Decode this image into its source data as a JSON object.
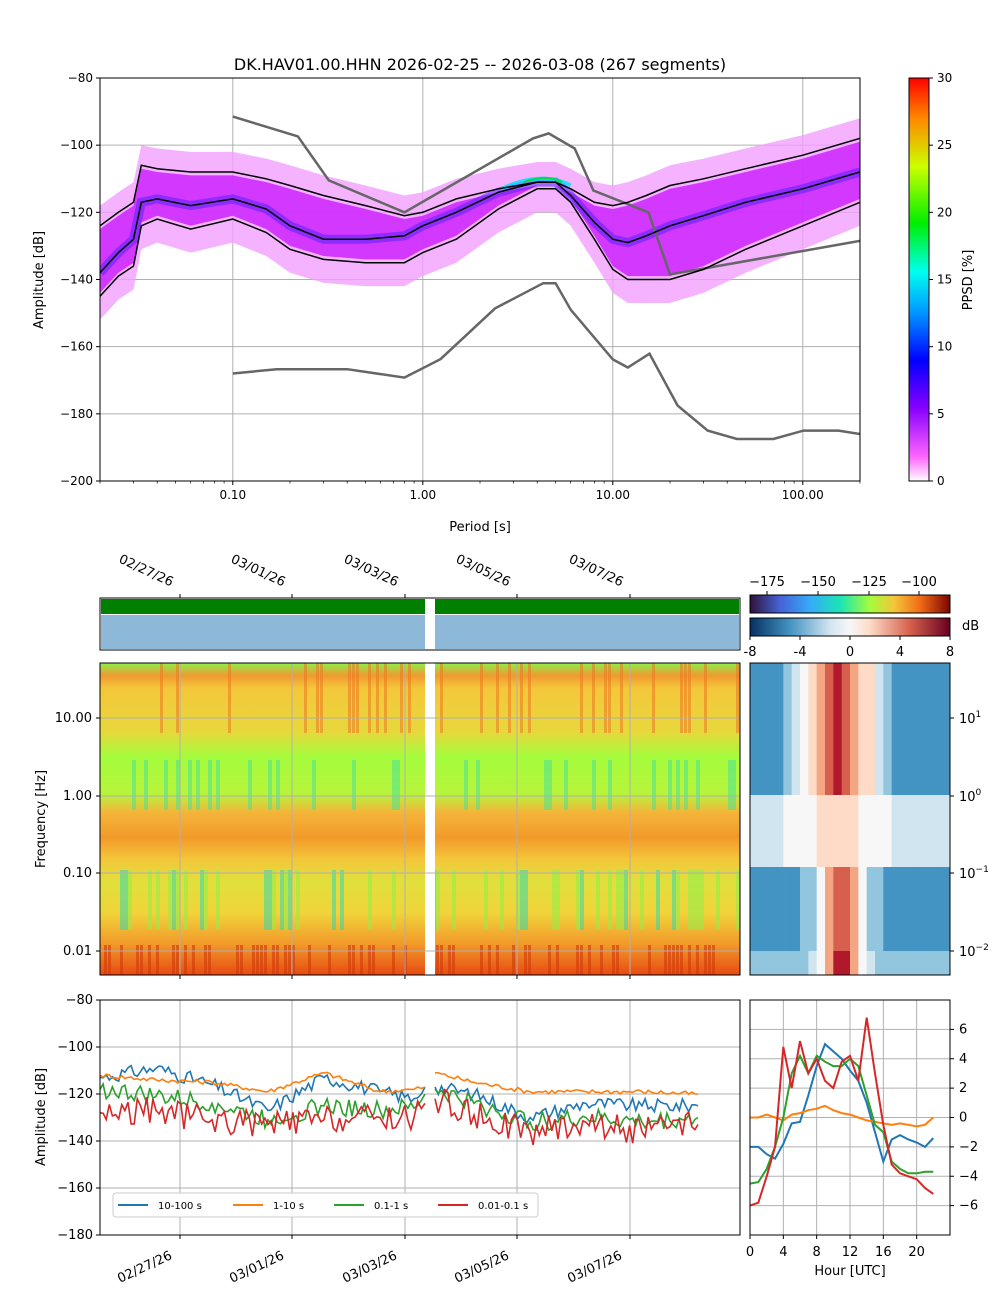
{
  "title": "DK.HAV01.00.HHN   2026-02-25 -- 2026-03-08  (267 segments)",
  "chart_data": [
    {
      "type": "heatmap",
      "name": "probabilistic power spectral density",
      "xlabel": "Period [s]",
      "ylabel": "Amplitude [dB]",
      "x_scale": "log",
      "xlim": [
        0.02,
        200
      ],
      "ylim": [
        -200,
        -80
      ],
      "xticks": [
        "0.10",
        "1.00",
        "10.00",
        "100.00"
      ],
      "yticks": [
        "−200",
        "−180",
        "−160",
        "−140",
        "−120",
        "−100",
        "−80"
      ],
      "grid": true,
      "colorbar": {
        "label": "PPSD [%]",
        "range": [
          0,
          30
        ],
        "ticks": [
          "0",
          "5",
          "10",
          "15",
          "20",
          "25",
          "30"
        ]
      },
      "percentile_curves": [
        {
          "x": [
            0.02,
            0.025,
            0.03,
            0.033,
            0.04,
            0.06,
            0.1,
            0.15,
            0.2,
            0.3,
            0.5,
            0.8,
            1.0,
            1.5,
            2.5,
            4,
            5,
            6,
            8,
            10,
            12,
            15,
            20,
            30,
            50,
            100,
            200
          ],
          "y": [
            -124,
            -120,
            -117,
            -106,
            -107,
            -108,
            -108,
            -110,
            -112,
            -115,
            -118,
            -121,
            -120,
            -116,
            -113,
            -111,
            -111,
            -113,
            -117,
            -118,
            -117,
            -115,
            -112,
            -110,
            -107,
            -103,
            -98
          ]
        },
        {
          "x": [
            0.02,
            0.025,
            0.03,
            0.033,
            0.04,
            0.06,
            0.1,
            0.15,
            0.2,
            0.3,
            0.5,
            0.8,
            1.0,
            1.5,
            2.5,
            4,
            5,
            6,
            8,
            10,
            12,
            15,
            20,
            30,
            50,
            100,
            200
          ],
          "y": [
            -138,
            -132,
            -128,
            -117,
            -116,
            -118,
            -116,
            -119,
            -124,
            -128,
            -128,
            -127,
            -124,
            -120,
            -114,
            -111,
            -111,
            -115,
            -123,
            -128,
            -129,
            -127,
            -124,
            -121,
            -117,
            -113,
            -108
          ]
        },
        {
          "x": [
            0.02,
            0.025,
            0.03,
            0.033,
            0.04,
            0.06,
            0.1,
            0.15,
            0.2,
            0.3,
            0.5,
            0.8,
            1.0,
            1.5,
            2.5,
            4,
            5,
            6,
            8,
            10,
            12,
            15,
            20,
            30,
            50,
            100,
            200
          ],
          "y": [
            -145,
            -139,
            -136,
            -124,
            -122,
            -125,
            -122,
            -126,
            -131,
            -134,
            -135,
            -135,
            -132,
            -128,
            -119,
            -113,
            -113,
            -117,
            -128,
            -137,
            -140,
            -140,
            -140,
            -137,
            -131,
            -124,
            -117
          ]
        }
      ],
      "noise_models": [
        {
          "name": "high noise model",
          "x": [
            0.1,
            0.22,
            0.32,
            0.8,
            3.8,
            4.6,
            6.3,
            7.9,
            15.4,
            20,
            200
          ],
          "y": [
            -91.5,
            -97.4,
            -110.5,
            -120,
            -98,
            -96.5,
            -101,
            -113.5,
            -120,
            -138.5,
            -128.5
          ]
        },
        {
          "name": "low noise model",
          "x": [
            0.1,
            0.17,
            0.4,
            0.8,
            1.24,
            2.4,
            4.3,
            5.0,
            6.0,
            10,
            12,
            15.6,
            21.9,
            31.6,
            45,
            70,
            101,
            154,
            200
          ],
          "y": [
            -168,
            -166.7,
            -166.7,
            -169.2,
            -163.7,
            -148.6,
            -141.1,
            -141.1,
            -149,
            -163.8,
            -166.2,
            -162.1,
            -177.5,
            -185,
            -187.5,
            -187.5,
            -185,
            -185,
            -186
          ]
        }
      ]
    },
    {
      "type": "heatmap",
      "name": "spectrogram",
      "ylabel": "Frequency [Hz]",
      "y_scale": "log",
      "xlim": [
        "2026-02-25",
        "2026-03-08"
      ],
      "yticks": [
        "0.01",
        "0.10",
        "1.00",
        "10.00"
      ],
      "xticks": [
        "02/27/26",
        "03/01/26",
        "03/03/26",
        "03/05/26",
        "03/07/26"
      ],
      "data_gap": [
        "2026-03-03 10:00",
        "2026-03-03 14:00"
      ],
      "colorbar": {
        "label": "",
        "ticks": [
          "−175",
          "−150",
          "−125",
          "−100"
        ]
      }
    },
    {
      "type": "heatmap",
      "name": "diurnal anomaly",
      "y_scale": "log",
      "xlim": [
        0,
        24
      ],
      "yticks": [
        "10^{-2}",
        "10^{-1}",
        "10^{0}",
        "10^{1}"
      ],
      "colorbar": {
        "label": "dB",
        "range": [
          -8,
          8
        ],
        "ticks": [
          "-8",
          "-4",
          "0",
          "4",
          "8"
        ]
      }
    },
    {
      "type": "line",
      "name": "band amplitude time series",
      "ylabel": "Amplitude [dB]",
      "ylim": [
        -180,
        -80
      ],
      "yticks": [
        "−180",
        "−160",
        "−140",
        "−120",
        "−100",
        "−80"
      ],
      "xticks": [
        "02/27/26",
        "03/01/26",
        "03/03/26",
        "03/05/26",
        "03/07/26"
      ],
      "grid": true,
      "legend": "lower-left",
      "series": [
        {
          "name": "10-100 s",
          "color": "#1f77b4",
          "x": [
            "02/25",
            "02/26",
            "02/27",
            "02/28",
            "03/01",
            "03/02",
            "03/03",
            "03/03 10:00",
            "03/03 14:00",
            "03/04",
            "03/05",
            "03/06",
            "03/07",
            "03/08"
          ],
          "y": [
            -113,
            -109,
            -116,
            -127,
            -113,
            -119,
            -122,
            -117,
            -117,
            -120,
            -130,
            -124,
            -125,
            -125
          ]
        },
        {
          "name": "1-10 s",
          "color": "#ff7f0e",
          "x": [
            "02/25",
            "02/26",
            "02/27",
            "02/28",
            "03/01",
            "03/02",
            "03/03",
            "03/03 10:00",
            "03/03 14:00",
            "03/04",
            "03/05",
            "03/06",
            "03/07",
            "03/08"
          ],
          "y": [
            -112,
            -114,
            -115,
            -119,
            -111,
            -119,
            -118,
            -117,
            -111,
            -115,
            -119,
            -119,
            -119,
            -120
          ]
        },
        {
          "name": "0.1-1 s",
          "color": "#2ca02c",
          "x": [
            "02/25",
            "02/26",
            "02/27",
            "02/28",
            "03/01",
            "03/02",
            "03/03",
            "03/03 10:00",
            "03/03 14:00",
            "03/04",
            "03/05",
            "03/06",
            "03/07",
            "03/08"
          ],
          "y": [
            -118,
            -121,
            -124,
            -131,
            -125,
            -127,
            -126,
            -120,
            -118,
            -124,
            -132,
            -130,
            -132,
            -130
          ]
        },
        {
          "name": "0.01-0.1 s",
          "color": "#d62728",
          "x": [
            "02/25",
            "02/26",
            "02/27",
            "02/28",
            "03/01",
            "03/02",
            "03/03",
            "03/03 10:00",
            "03/03 14:00",
            "03/04",
            "03/05",
            "03/06",
            "03/07",
            "03/08"
          ],
          "y": [
            -128,
            -127,
            -131,
            -133,
            -131,
            -130,
            -130,
            -124,
            -122,
            -129,
            -136,
            -132,
            -136,
            -133
          ]
        }
      ]
    },
    {
      "type": "line",
      "name": "diurnal band deviation",
      "xlabel": "Hour [UTC]",
      "xlim": [
        0,
        24
      ],
      "ylim": [
        -8,
        8
      ],
      "xticks": [
        "0",
        "4",
        "8",
        "12",
        "16",
        "20"
      ],
      "yticks": [
        "−6",
        "−4",
        "−2",
        "0",
        "2",
        "4",
        "6"
      ],
      "grid": true,
      "series": [
        {
          "name": "10-100 s",
          "color": "#1f77b4",
          "x": [
            0,
            1,
            2,
            3,
            4,
            5,
            6,
            7,
            8,
            9,
            10,
            11,
            12,
            13,
            14,
            15,
            16,
            17,
            18,
            19,
            20,
            21,
            22
          ],
          "y": [
            -2.0,
            -2.0,
            -2.5,
            -2.8,
            -1.8,
            -0.4,
            -0.3,
            1.5,
            3.5,
            5.0,
            4.5,
            4.0,
            3.2,
            2.5,
            1.0,
            -1.0,
            -3.0,
            -1.5,
            -1.2,
            -1.5,
            -1.7,
            -2.0,
            -1.4
          ]
        },
        {
          "name": "1-10 s",
          "color": "#ff7f0e",
          "x": [
            0,
            1,
            2,
            3,
            4,
            5,
            6,
            7,
            8,
            9,
            10,
            11,
            12,
            13,
            14,
            15,
            16,
            17,
            18,
            19,
            20,
            21,
            22
          ],
          "y": [
            0,
            0,
            0.2,
            0,
            -0.2,
            0.2,
            0.3,
            0.5,
            0.6,
            0.8,
            0.5,
            0.3,
            0.2,
            0,
            -0.2,
            -0.3,
            -0.4,
            -0.5,
            -0.4,
            -0.5,
            -0.6,
            -0.5,
            0
          ]
        },
        {
          "name": "0.1-1 s",
          "color": "#2ca02c",
          "x": [
            0,
            1,
            2,
            3,
            4,
            5,
            6,
            7,
            8,
            9,
            10,
            11,
            12,
            13,
            14,
            15,
            16,
            17,
            18,
            19,
            20,
            21,
            22
          ],
          "y": [
            -4.5,
            -4.4,
            -3.5,
            -2.0,
            0.0,
            3.0,
            4.2,
            3.0,
            4.2,
            3.8,
            3.5,
            3.5,
            4.0,
            3.5,
            1.5,
            -0.5,
            -1.0,
            -3.0,
            -3.5,
            -3.8,
            -3.8,
            -3.7,
            -3.7
          ]
        },
        {
          "name": "0.01-0.1 s",
          "color": "#d62728",
          "x": [
            0,
            1,
            2,
            3,
            4,
            5,
            6,
            7,
            8,
            9,
            10,
            11,
            12,
            13,
            14,
            15,
            16,
            17,
            18,
            19,
            20,
            21,
            22
          ],
          "y": [
            -6.0,
            -5.8,
            -4.0,
            -2.0,
            4.8,
            2.0,
            5.2,
            3.0,
            4.0,
            2.5,
            2.0,
            3.8,
            4.2,
            2.5,
            6.8,
            3.0,
            -0.5,
            -3.2,
            -3.8,
            -4.0,
            -4.2,
            -4.8,
            -5.2
          ]
        }
      ]
    }
  ]
}
